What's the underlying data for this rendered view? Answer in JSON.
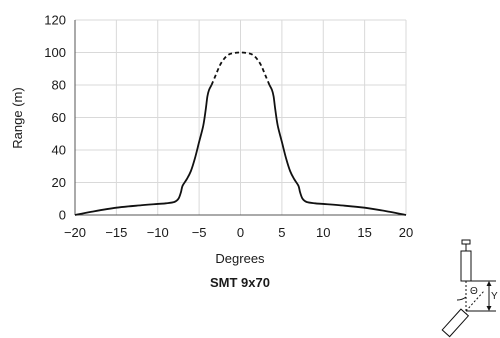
{
  "chart_data": {
    "type": "line",
    "title": "",
    "caption": "SMT 9x70",
    "xlabel": "Degrees",
    "ylabel": "Range (m)",
    "xlim": [
      -20,
      20
    ],
    "ylim": [
      0,
      120
    ],
    "xticks": [
      -20,
      -15,
      -10,
      -5,
      0,
      5,
      10,
      15,
      20
    ],
    "xtick_labels": [
      "−20",
      "−15",
      "−10",
      "−5",
      "0",
      "5",
      "10",
      "15",
      "20"
    ],
    "yticks": [
      0,
      20,
      40,
      60,
      80,
      100,
      120
    ],
    "ytick_labels": [
      "0",
      "20",
      "40",
      "60",
      "80",
      "100",
      "120"
    ],
    "grid": true,
    "series": [
      {
        "style": "solid",
        "color": "#111111",
        "x": [
          -20,
          -18,
          -15,
          -12,
          -10,
          -9,
          -8,
          -7.5,
          -7.2,
          -7,
          -6.5,
          -6,
          -5.5,
          -5,
          -4.5,
          -4.2,
          -4,
          -3.8,
          -3.5
        ],
        "y": [
          0,
          2,
          4.5,
          6,
          6.8,
          7.2,
          8,
          10,
          14,
          18,
          22,
          27,
          35,
          45,
          55,
          65,
          73,
          77,
          80
        ]
      },
      {
        "style": "dashed",
        "color": "#111111",
        "x": [
          -3.5,
          -3,
          -2.5,
          -2,
          -1.5,
          -1,
          0,
          1,
          1.5,
          2,
          2.5,
          3,
          3.5
        ],
        "y": [
          80,
          86,
          92,
          96,
          98.5,
          99.5,
          100,
          99.5,
          98.5,
          96,
          92,
          86,
          80
        ]
      },
      {
        "style": "solid",
        "color": "#111111",
        "x": [
          3.5,
          3.8,
          4,
          4.2,
          4.5,
          5,
          5.5,
          6,
          6.5,
          7,
          7.2,
          7.5,
          8,
          9,
          10,
          12,
          15,
          18,
          20
        ],
        "y": [
          80,
          77,
          73,
          65,
          55,
          45,
          35,
          27,
          22,
          18,
          14,
          10,
          8,
          7.2,
          6.8,
          6,
          4.5,
          2,
          0
        ]
      }
    ],
    "inset_diagram": {
      "symbols": [
        "Θ",
        "Y"
      ]
    }
  }
}
